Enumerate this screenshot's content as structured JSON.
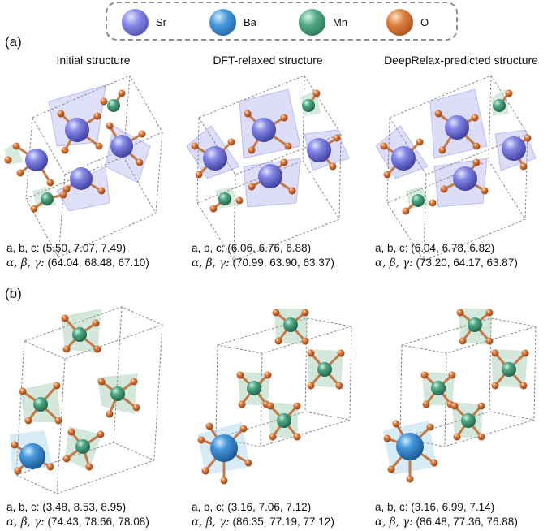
{
  "legend": {
    "items": [
      {
        "label": "Sr",
        "color": "#7b7de0",
        "highlight": "#d8d9ff",
        "shade": "#3d3fa8"
      },
      {
        "label": "Ba",
        "color": "#3f93d8",
        "highlight": "#c7e6ff",
        "shade": "#1d5a98"
      },
      {
        "label": "Mn",
        "color": "#4aa582",
        "highlight": "#c8f0dd",
        "shade": "#276a51"
      },
      {
        "label": "O",
        "color": "#d9783a",
        "highlight": "#ffd6b3",
        "shade": "#9a4718"
      }
    ]
  },
  "panels": {
    "a": "(a)",
    "b": "(b)"
  },
  "column_titles": [
    "Initial structure",
    "DFT-relaxed structure",
    "DeepRelax-predicted structure"
  ],
  "structures": {
    "a": [
      {
        "abc_label": "a, b, c:",
        "abc_values": "(5.50, 7.07, 7.49)",
        "angle_label": "α, β, γ:",
        "angle_values": "(64.04, 68.48, 67.10)"
      },
      {
        "abc_label": "a, b, c:",
        "abc_values": "(6.06, 6.76, 6.88)",
        "angle_label": "α, β, γ:",
        "angle_values": "(70.99, 63.90, 63.37)"
      },
      {
        "abc_label": "a, b, c:",
        "abc_values": "(6.04, 6.78, 6.82)",
        "angle_label": "α, β, γ:",
        "angle_values": "(73.20, 64.17, 63.87)"
      }
    ],
    "b": [
      {
        "abc_label": "a, b, c:",
        "abc_values": "(3.48, 8.53, 8.95)",
        "angle_label": "α, β, γ:",
        "angle_values": "(74.43, 78.66, 78.08)"
      },
      {
        "abc_label": "a, b, c:",
        "abc_values": "(3.16, 7.06, 7.12)",
        "angle_label": "α, β, γ:",
        "angle_values": "(86.35, 77.19, 77.12)"
      },
      {
        "abc_label": "a, b, c:",
        "abc_values": "(3.16, 6.99, 7.14)",
        "angle_label": "α, β, γ:",
        "angle_values": "(86.48, 77.36, 76.88)"
      }
    ]
  },
  "colors": {
    "sr_polyhedron": "#8d8fe6",
    "ba_polyhedron": "#8fc8ea",
    "mn_polyhedron": "#8fbfa0",
    "cell_edge": "#8a8a8a"
  }
}
